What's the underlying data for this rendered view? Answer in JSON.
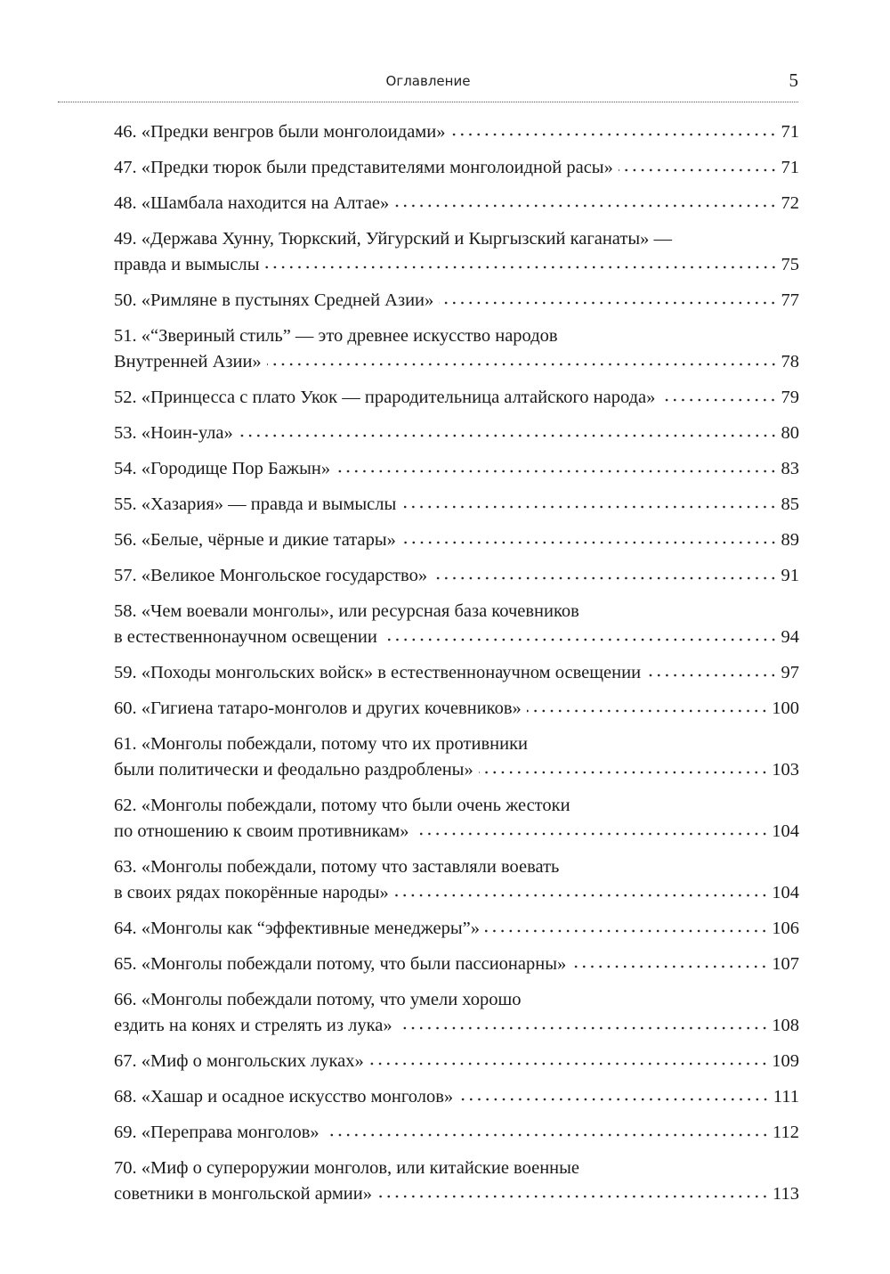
{
  "header": {
    "title": "Оглавление",
    "page_number": "5"
  },
  "entries": [
    {
      "lines": [
        "46. «Предки венгров были монголоидами»"
      ],
      "page": "71"
    },
    {
      "lines": [
        "47. «Предки тюрок были представителями монголоидной расы»"
      ],
      "page": "71"
    },
    {
      "lines": [
        "48. «Шамбала находится на Алтае»"
      ],
      "page": "72"
    },
    {
      "lines": [
        "49. «Держава Хунну, Тюркский, Уйгурский и Кыргызский каганаты» —",
        "правда и вымыслы"
      ],
      "page": "75"
    },
    {
      "lines": [
        "50. «Римляне в пустынях Средней Азии»"
      ],
      "page": "77"
    },
    {
      "lines": [
        "51. «“Звериный стиль” — это древнее искусство народов",
        "Внутренней Азии»"
      ],
      "page": "78"
    },
    {
      "lines": [
        "52. «Принцесса с плато Укок — прародительница алтайского народа»"
      ],
      "page": "79"
    },
    {
      "lines": [
        "53. «Ноин-ула»"
      ],
      "page": "80"
    },
    {
      "lines": [
        "54. «Городище Пор Бажын»"
      ],
      "page": "83"
    },
    {
      "lines": [
        "55. «Хазария» — правда и вымыслы"
      ],
      "page": "85"
    },
    {
      "lines": [
        "56. «Белые, чёрные и дикие татары»"
      ],
      "page": "89"
    },
    {
      "lines": [
        "57. «Великое Монгольское государство»"
      ],
      "page": "91"
    },
    {
      "lines": [
        "58. «Чем воевали монголы», или ресурсная база кочевников",
        "в естественнонаучном освещении"
      ],
      "page": "94"
    },
    {
      "lines": [
        "59. «Походы монгольских войск» в естественнонаучном освещении"
      ],
      "page": "97"
    },
    {
      "lines": [
        "60. «Гигиена татаро-монголов и других кочевников»"
      ],
      "page": "100"
    },
    {
      "lines": [
        "61. «Монголы побеждали, потому что их противники",
        "были политически и феодально раздроблены»"
      ],
      "page": "103"
    },
    {
      "lines": [
        "62. «Монголы побеждали, потому что были очень жестоки",
        "по отношению к своим противникам»"
      ],
      "page": "104"
    },
    {
      "lines": [
        "63. «Монголы побеждали, потому что заставляли воевать",
        "в своих рядах покорённые народы»"
      ],
      "page": "104"
    },
    {
      "lines": [
        "64. «Монголы как “эффективные менеджеры”»"
      ],
      "page": "106"
    },
    {
      "lines": [
        "65. «Монголы побеждали потому, что были пассионарны»"
      ],
      "page": "107"
    },
    {
      "lines": [
        "66. «Монголы побеждали потому, что умели хорошо",
        "ездить на конях и стрелять из лука»"
      ],
      "page": "108"
    },
    {
      "lines": [
        "67. «Миф о монгольских луках»"
      ],
      "page": "109"
    },
    {
      "lines": [
        "68. «Хашар и осадное искусство монголов»"
      ],
      "page": "111"
    },
    {
      "lines": [
        "69. «Переправа монголов»"
      ],
      "page": "112"
    },
    {
      "lines": [
        "70. «Миф о супероружии монголов, или китайские военные",
        "советники в монгольской армии»"
      ],
      "page": "113"
    }
  ]
}
